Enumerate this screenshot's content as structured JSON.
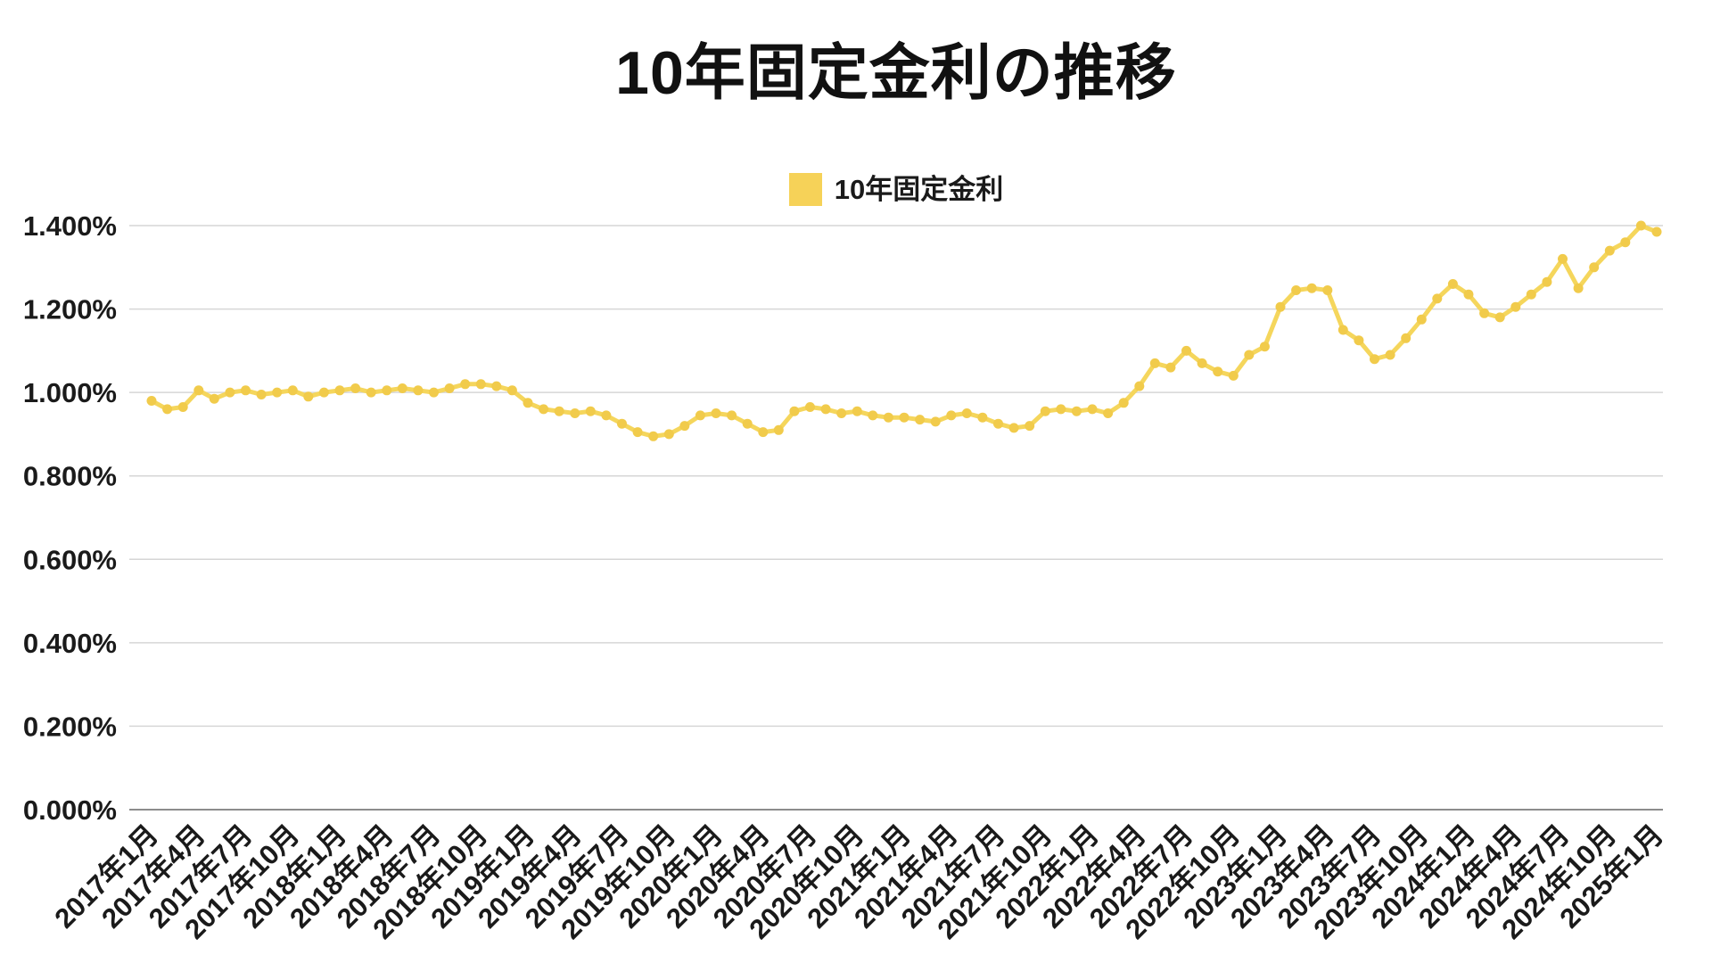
{
  "header": {
    "title": "10年固定金利の推移"
  },
  "legend": {
    "items": [
      {
        "label": "10年固定金利",
        "color": "#F6D258"
      }
    ]
  },
  "colors": {
    "background": "#FFFFFF",
    "line": "#F5D65C",
    "marker": "#F1CB4B",
    "grid": "#D6D6D6",
    "axis": "#8C8C8C",
    "text": "#1A1A1A"
  },
  "chart_data": {
    "type": "line",
    "title": "10年固定金利の推移",
    "legend_position": "top-center",
    "grid": true,
    "ylim": [
      0,
      1.4
    ],
    "y_ticks": [
      "0.000%",
      "0.200%",
      "0.400%",
      "0.600%",
      "0.800%",
      "1.000%",
      "1.200%",
      "1.400%"
    ],
    "x_tick_every": 3,
    "x": [
      "2017年1月",
      "2017年2月",
      "2017年3月",
      "2017年4月",
      "2017年5月",
      "2017年6月",
      "2017年7月",
      "2017年8月",
      "2017年9月",
      "2017年10月",
      "2017年11月",
      "2017年12月",
      "2018年1月",
      "2018年2月",
      "2018年3月",
      "2018年4月",
      "2018年5月",
      "2018年6月",
      "2018年7月",
      "2018年8月",
      "2018年9月",
      "2018年10月",
      "2018年11月",
      "2018年12月",
      "2019年1月",
      "2019年2月",
      "2019年3月",
      "2019年4月",
      "2019年5月",
      "2019年6月",
      "2019年7月",
      "2019年8月",
      "2019年9月",
      "2019年10月",
      "2019年11月",
      "2019年12月",
      "2020年1月",
      "2020年2月",
      "2020年3月",
      "2020年4月",
      "2020年5月",
      "2020年6月",
      "2020年7月",
      "2020年8月",
      "2020年9月",
      "2020年10月",
      "2020年11月",
      "2020年12月",
      "2021年1月",
      "2021年2月",
      "2021年3月",
      "2021年4月",
      "2021年5月",
      "2021年6月",
      "2021年7月",
      "2021年8月",
      "2021年9月",
      "2021年10月",
      "2021年11月",
      "2021年12月",
      "2022年1月",
      "2022年2月",
      "2022年3月",
      "2022年4月",
      "2022年5月",
      "2022年6月",
      "2022年7月",
      "2022年8月",
      "2022年9月",
      "2022年10月",
      "2022年11月",
      "2022年12月",
      "2023年1月",
      "2023年2月",
      "2023年3月",
      "2023年4月",
      "2023年5月",
      "2023年6月",
      "2023年7月",
      "2023年8月",
      "2023年9月",
      "2023年10月",
      "2023年11月",
      "2023年12月",
      "2024年1月",
      "2024年2月",
      "2024年3月",
      "2024年4月",
      "2024年5月",
      "2024年6月",
      "2024年7月",
      "2024年8月",
      "2024年9月",
      "2024年10月",
      "2024年11月",
      "2024年12月",
      "2025年1月"
    ],
    "series": [
      {
        "name": "10年固定金利",
        "unit": "%",
        "values": [
          0.98,
          0.96,
          0.965,
          1.005,
          0.985,
          1.0,
          1.005,
          0.995,
          1.0,
          1.005,
          0.99,
          1.0,
          1.005,
          1.01,
          1.0,
          1.005,
          1.01,
          1.005,
          1.0,
          1.01,
          1.02,
          1.02,
          1.015,
          1.005,
          0.975,
          0.96,
          0.955,
          0.95,
          0.955,
          0.945,
          0.925,
          0.905,
          0.895,
          0.9,
          0.92,
          0.945,
          0.95,
          0.945,
          0.925,
          0.905,
          0.91,
          0.955,
          0.965,
          0.96,
          0.95,
          0.955,
          0.945,
          0.94,
          0.94,
          0.935,
          0.93,
          0.945,
          0.95,
          0.94,
          0.925,
          0.915,
          0.92,
          0.955,
          0.96,
          0.955,
          0.96,
          0.95,
          0.975,
          1.015,
          1.07,
          1.06,
          1.1,
          1.07,
          1.05,
          1.04,
          1.09,
          1.11,
          1.205,
          1.245,
          1.25,
          1.245,
          1.15,
          1.125,
          1.08,
          1.09,
          1.13,
          1.175,
          1.225,
          1.26,
          1.235,
          1.19,
          1.18,
          1.205,
          1.235,
          1.265,
          1.32,
          1.25,
          1.3,
          1.34,
          1.36,
          1.4,
          1.385
        ]
      }
    ]
  }
}
